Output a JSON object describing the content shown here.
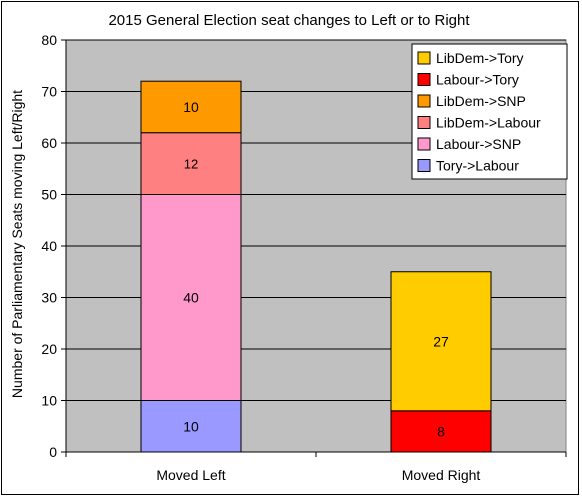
{
  "chart_data": {
    "type": "bar",
    "stacked": true,
    "title": "2015 General Election seat changes to Left or to Right",
    "xlabel": "",
    "ylabel": "Number of Parliamentary Seats moving Left/Right",
    "ylim": [
      0,
      80
    ],
    "yticks": [
      0,
      10,
      20,
      30,
      40,
      50,
      60,
      70,
      80
    ],
    "grid": true,
    "legend_position": "top-right",
    "categories": [
      "Moved Left",
      "Moved Right"
    ],
    "series": [
      {
        "name": "Tory->Labour",
        "color": "#9999ff",
        "values": [
          10,
          0
        ]
      },
      {
        "name": "Labour->SNP",
        "color": "#ff99cc",
        "values": [
          40,
          0
        ]
      },
      {
        "name": "LibDem->Labour",
        "color": "#ff8080",
        "values": [
          12,
          0
        ]
      },
      {
        "name": "LibDem->SNP",
        "color": "#ff9900",
        "values": [
          10,
          0
        ]
      },
      {
        "name": "Labour->Tory",
        "color": "#ff0000",
        "values": [
          0,
          8
        ]
      },
      {
        "name": "LibDem->Tory",
        "color": "#ffcc00",
        "values": [
          0,
          27
        ]
      }
    ],
    "legend_order": [
      "LibDem->Tory",
      "Labour->Tory",
      "LibDem->SNP",
      "LibDem->Labour",
      "Labour->SNP",
      "Tory->Labour"
    ],
    "plot_background": "#c0c0c0"
  }
}
